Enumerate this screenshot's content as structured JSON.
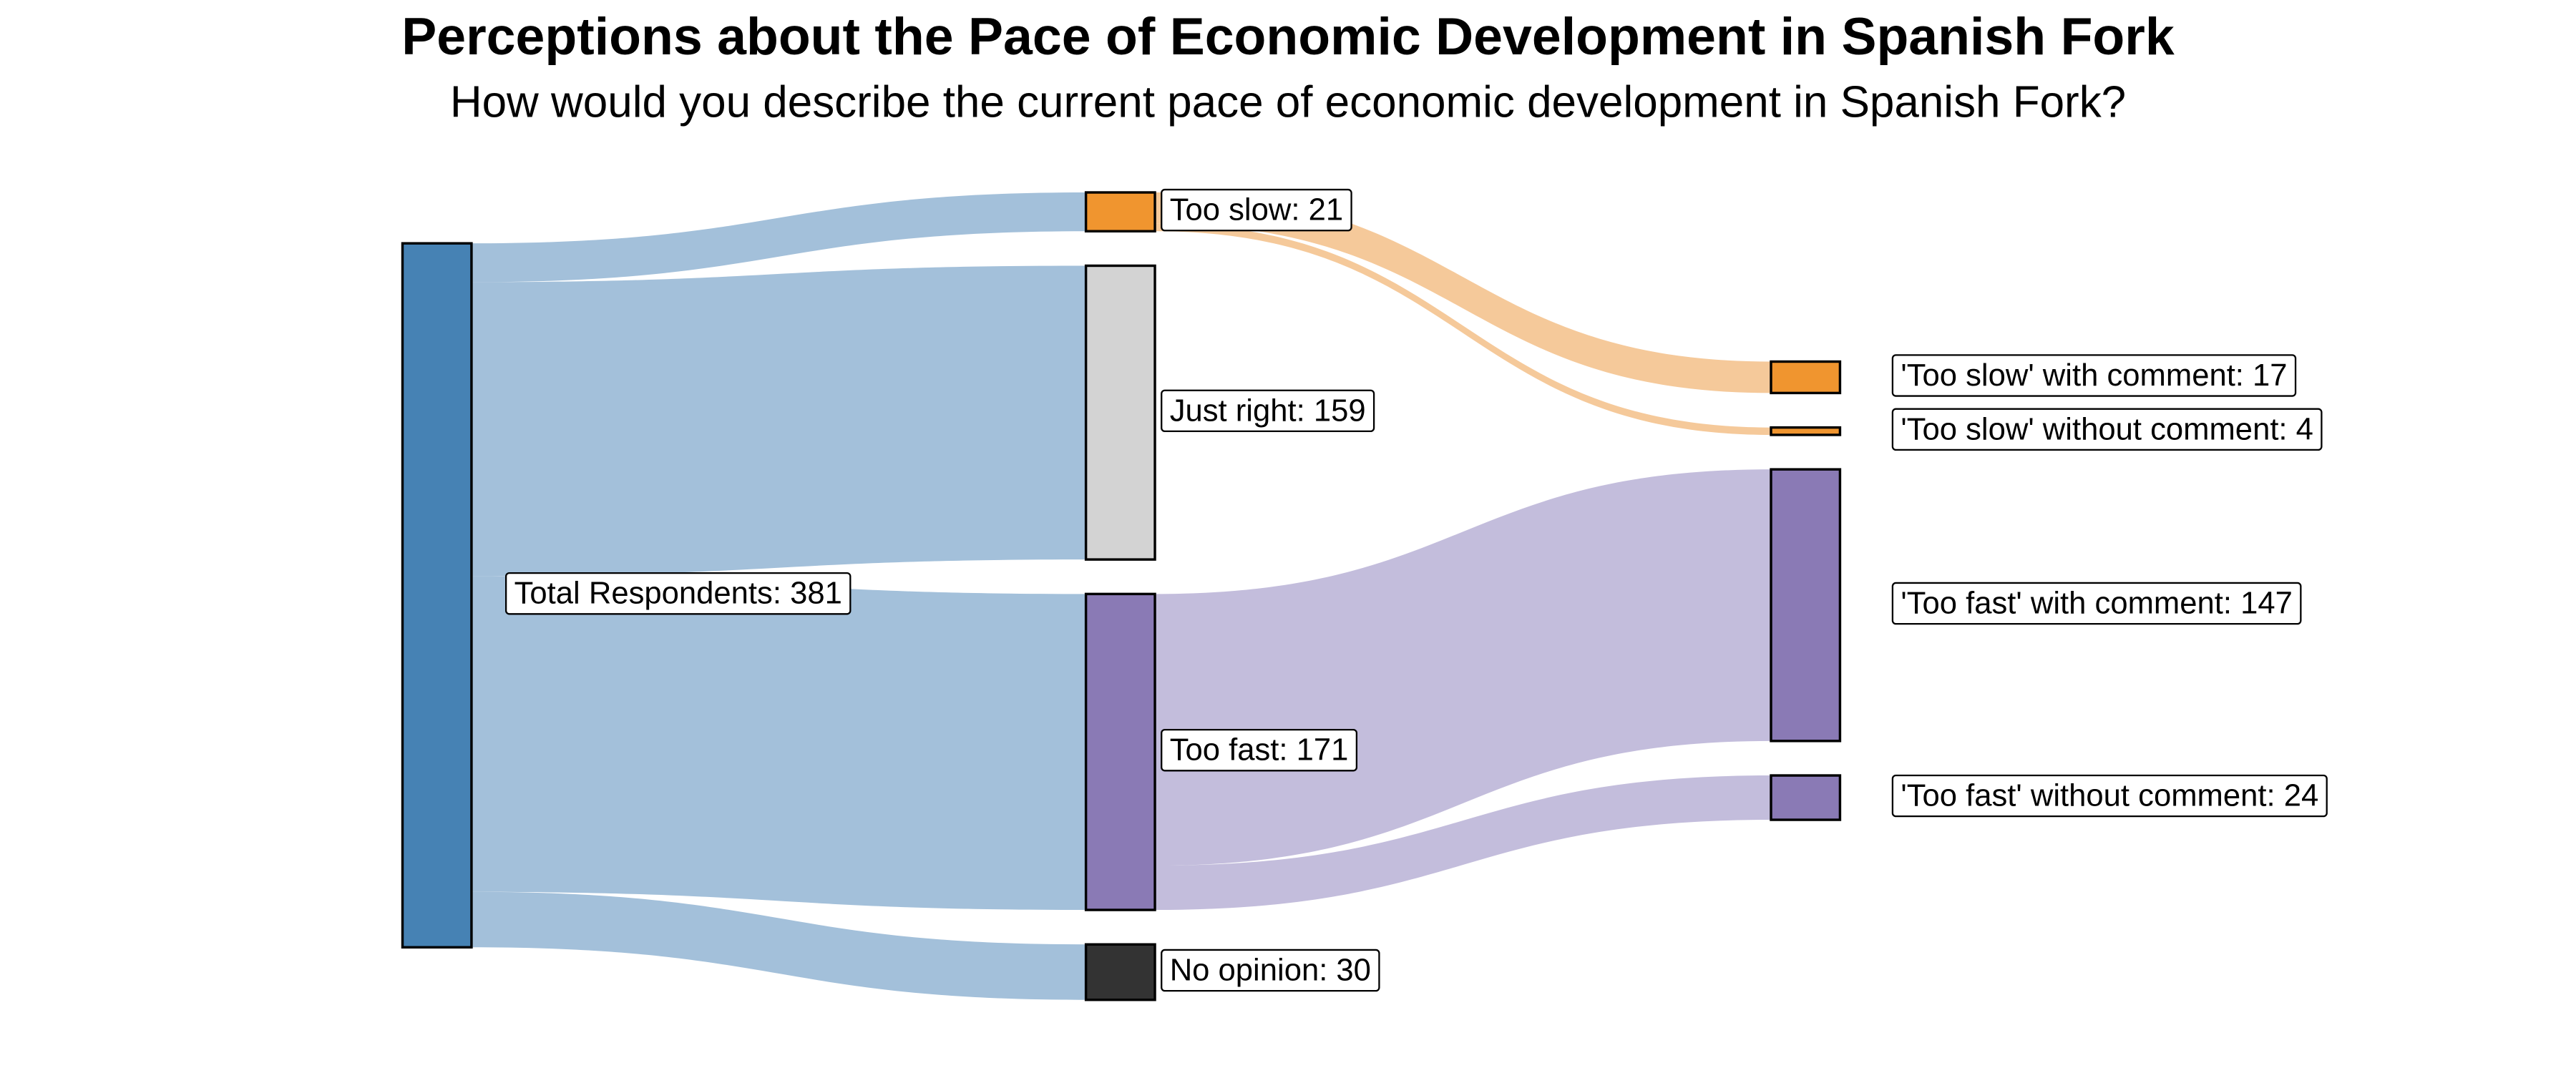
{
  "chart_data": {
    "type": "sankey",
    "title": "Perceptions about the Pace of Economic Development in Spanish Fork",
    "subtitle": "How would you describe the current pace of economic development in Spanish Fork?",
    "nodes": [
      {
        "name": "Total Respondents",
        "value": 381,
        "label": "Total Respondents: 381",
        "color": "#4682b4"
      },
      {
        "name": "Too slow",
        "value": 21,
        "label": "Too slow: 21",
        "color": "#f0952f"
      },
      {
        "name": "Just right",
        "value": 159,
        "label": "Just right: 159",
        "color": "#d3d3d3"
      },
      {
        "name": "Too fast",
        "value": 171,
        "label": "Too fast: 171",
        "color": "#8a7ab5"
      },
      {
        "name": "No opinion",
        "value": 30,
        "label": "No opinion: 30",
        "color": "#333333"
      },
      {
        "name": "'Too slow' with comment",
        "value": 17,
        "label": "'Too slow' with comment: 17",
        "color": "#f0952f"
      },
      {
        "name": "'Too slow' without comment",
        "value": 4,
        "label": "'Too slow' without comment: 4",
        "color": "#f0952f"
      },
      {
        "name": "'Too fast' with comment",
        "value": 147,
        "label": "'Too fast' with comment: 147",
        "color": "#8a7ab5"
      },
      {
        "name": "'Too fast' without comment",
        "value": 24,
        "label": "'Too fast' without comment: 24",
        "color": "#8a7ab5"
      }
    ],
    "links": [
      {
        "source": 0,
        "target": 1,
        "value": 21,
        "color": "#a3c0da"
      },
      {
        "source": 0,
        "target": 2,
        "value": 159,
        "color": "#a3c0da"
      },
      {
        "source": 0,
        "target": 3,
        "value": 171,
        "color": "#a3c0da"
      },
      {
        "source": 0,
        "target": 4,
        "value": 30,
        "color": "#a3c0da"
      },
      {
        "source": 1,
        "target": 5,
        "value": 17,
        "color": "#f5c99a"
      },
      {
        "source": 1,
        "target": 6,
        "value": 4,
        "color": "#f5c99a"
      },
      {
        "source": 3,
        "target": 7,
        "value": 147,
        "color": "#c3bddc"
      },
      {
        "source": 3,
        "target": 8,
        "value": 24,
        "color": "#c3bddc"
      }
    ]
  }
}
